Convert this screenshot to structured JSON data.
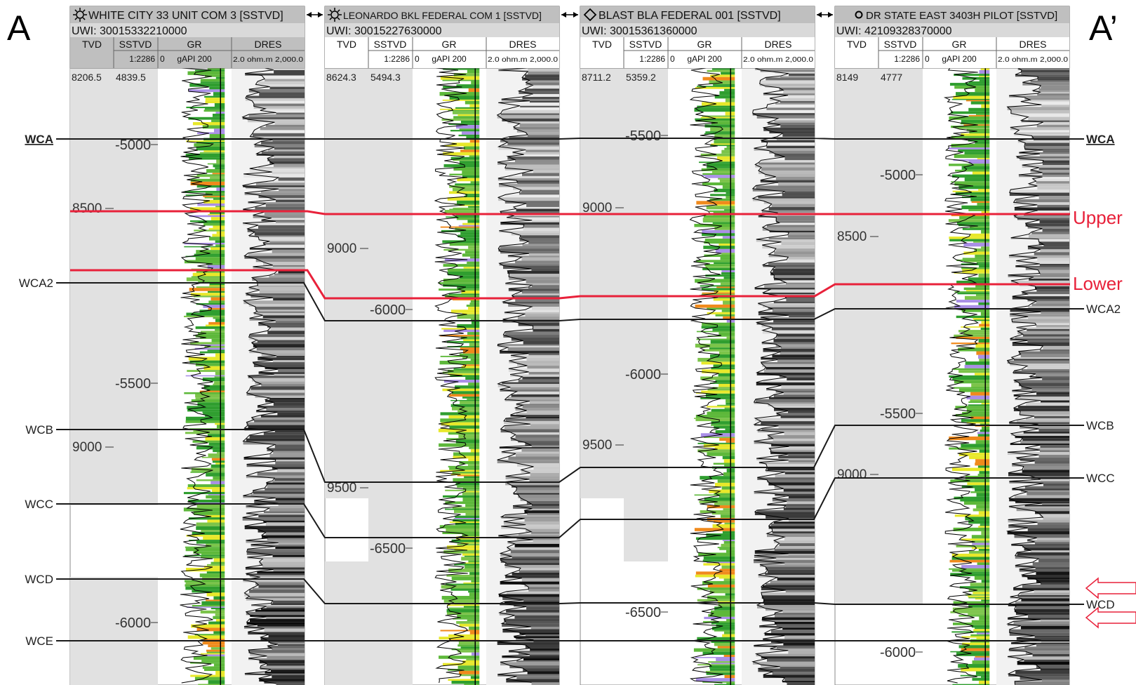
{
  "section": {
    "start_label": "A",
    "end_label": "A’"
  },
  "track_headers": {
    "tvd": "TVD",
    "sstvd": "SSTVD",
    "gr": "GR",
    "dres": "DRES",
    "uwi_prefix": "UWI:",
    "gr_scale": {
      "min": "0",
      "unit": "gAPI",
      "max": "200"
    },
    "dres_scale": {
      "min": "2.0",
      "unit": "ohm.m",
      "max": "2,000.0"
    }
  },
  "wells": [
    {
      "name": "WHITE CITY 33 UNIT COM 3 [SSTVD]",
      "uwi": "30015332210000",
      "symbol": "gas-well-symbol",
      "scale": "1:2286",
      "top_tvd": "8206.5",
      "top_sstvd": "4839.5",
      "tvd_labels": [
        "8500",
        "9000"
      ],
      "sstvd_labels": [
        "-5000",
        "-5500",
        "-6000"
      ]
    },
    {
      "name": "LEONARDO BKL FEDERAL COM 1 [SSTVD]",
      "uwi": "30015227630000",
      "symbol": "gas-well-symbol",
      "scale": "1:2286",
      "top_tvd": "8624.3",
      "top_sstvd": "5494.3",
      "tvd_labels": [
        "9000",
        "9500"
      ],
      "sstvd_labels": [
        "-6000",
        "-6500"
      ]
    },
    {
      "name": "BLAST BLA FEDERAL 001 [SSTVD]",
      "uwi": "30015361360000",
      "symbol": "oil-well-symbol",
      "scale": "1:2286",
      "top_tvd": "8711.2",
      "top_sstvd": "5359.2",
      "tvd_labels": [
        "9000",
        "9500"
      ],
      "sstvd_labels": [
        "-5500",
        "-6000",
        "-6500"
      ]
    },
    {
      "name": "DR STATE EAST 3403H PILOT [SSTVD]",
      "uwi": "42109328370000",
      "symbol": "location-symbol",
      "scale": "1:2286",
      "top_tvd": "8149",
      "top_sstvd": "4777",
      "tvd_labels": [
        "8500",
        "9000"
      ],
      "sstvd_labels": [
        "-5000",
        "-5500",
        "-6000"
      ]
    }
  ],
  "formation_tops": {
    "left_labels": [
      "WCA",
      "WCA2",
      "WCB",
      "WCC",
      "WCD",
      "WCE"
    ],
    "right_labels": [
      "WCA",
      "WCA2",
      "WCB",
      "WCC",
      "WCD"
    ]
  },
  "zone_markers": {
    "upper": "Upper",
    "lower": "Lower"
  },
  "colors": {
    "correlation_line": "#1a1a1a",
    "zone_line": "#e8213a",
    "track_shade": "#e1e1e1",
    "header_shade": "#bfbfbf",
    "gr_green": "#2f9e2f",
    "gr_yellow": "#e8e82a",
    "gr_orange": "#f08a1c",
    "gr_purple": "#a98fe6",
    "arrow_red": "#e8213a"
  }
}
